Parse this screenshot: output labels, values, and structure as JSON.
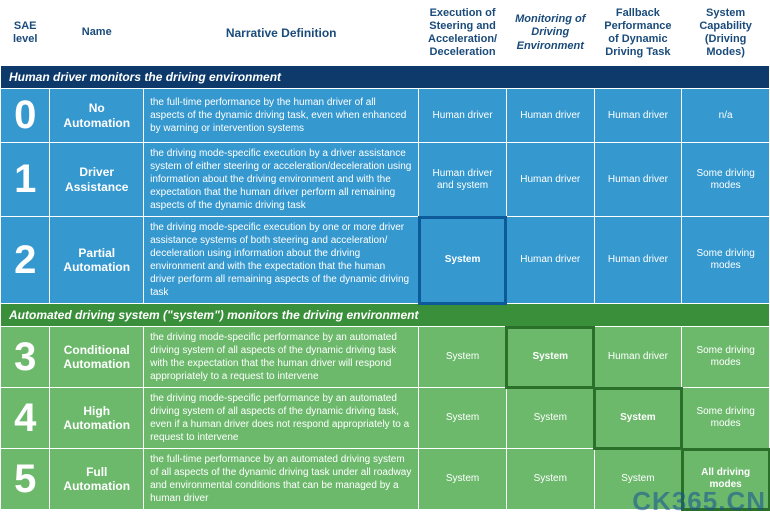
{
  "headers": {
    "sae": "SAE level",
    "name": "Name",
    "narrative": "Narrative Definition",
    "col4": "Execution of Steering and Acceleration/ Deceleration",
    "col5": "Monitoring of Driving Environment",
    "col6": "Fallback Performance of Dynamic Driving Task",
    "col7": "System Capability (Driving Modes)"
  },
  "section1": "Human driver monitors the driving environment",
  "section2": "Automated driving system (\"system\") monitors the driving environment",
  "rows": [
    {
      "level": "0",
      "name": "No Automation",
      "narrative": "the full-time performance by the human driver of all aspects of the dynamic driving task, even when enhanced by warning or intervention systems",
      "c4": "Human driver",
      "c5": "Human driver",
      "c6": "Human driver",
      "c7": "n/a"
    },
    {
      "level": "1",
      "name": "Driver Assistance",
      "narrative": "the driving mode-specific execution by a driver assistance system of either steering or acceleration/deceleration using information about the driving environment and with the expectation that the human driver perform all remaining aspects of the dynamic driving task",
      "c4": "Human driver and system",
      "c5": "Human driver",
      "c6": "Human driver",
      "c7": "Some driving modes"
    },
    {
      "level": "2",
      "name": "Partial Automation",
      "narrative": "the driving mode-specific execution by one or more driver assistance systems of both steering and acceleration/ deceleration using information about the driving environment and with the expectation that the human driver perform all remaining aspects of the dynamic driving task",
      "c4": "System",
      "c5": "Human driver",
      "c6": "Human driver",
      "c7": "Some driving modes"
    },
    {
      "level": "3",
      "name": "Conditional Automation",
      "narrative": "the driving mode-specific performance by an automated driving system of all aspects of the dynamic driving task with the expectation that the human driver will respond appropriately to a request to intervene",
      "c4": "System",
      "c5": "System",
      "c6": "Human driver",
      "c7": "Some driving modes"
    },
    {
      "level": "4",
      "name": "High Automation",
      "narrative": "the driving mode-specific performance by an automated driving system of all aspects of the dynamic driving task, even if a human driver does not respond appropriately to a request to intervene",
      "c4": "System",
      "c5": "System",
      "c6": "System",
      "c7": "Some driving modes"
    },
    {
      "level": "5",
      "name": "Full Automation",
      "narrative": "the full-time performance by an automated driving system of all aspects of the dynamic driving task under all roadway and environmental conditions that can be managed by a human driver",
      "c4": "System",
      "c5": "System",
      "c6": "System",
      "c7": "All driving modes"
    }
  ],
  "watermark": "CK365.CN",
  "colors": {
    "blue_section": "#0d3a6b",
    "green_section": "#3a8f3a",
    "blue_row": "#3598cf",
    "green_row": "#6cb96c",
    "header_text": "#1a4b7a"
  }
}
